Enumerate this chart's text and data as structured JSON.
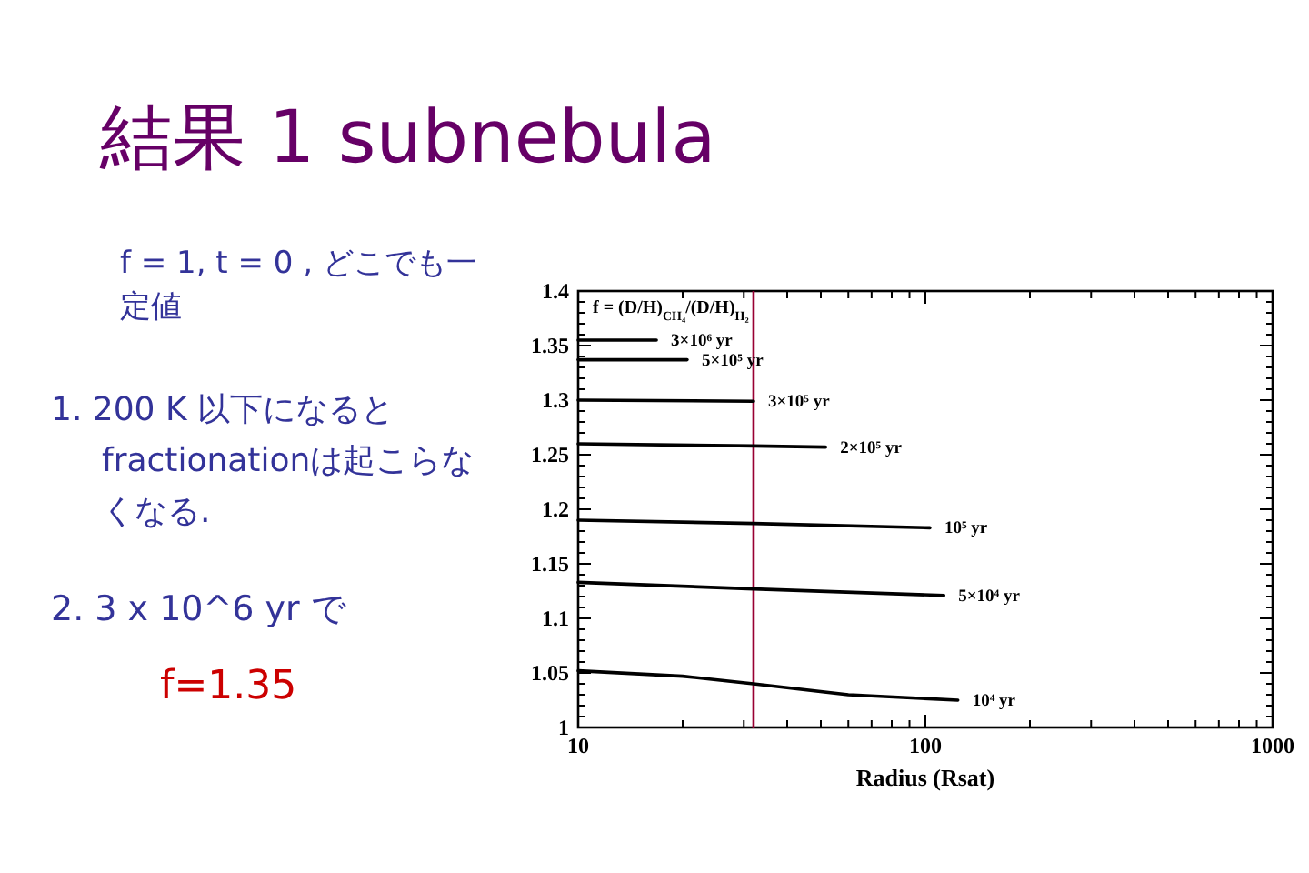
{
  "chart_data": {
    "type": "line",
    "title": "結果 1  subnebula",
    "xlabel": "Radius (Rsat)",
    "log": "x",
    "grid": false,
    "marker": "none",
    "line_style": "solid",
    "xlim": [
      10,
      1000
    ],
    "xticks": [
      10,
      100,
      1000
    ],
    "ylim": [
      1,
      1.4
    ],
    "yticks": [
      1,
      1.05,
      1.1,
      1.15,
      1.2,
      1.25,
      1.3,
      1.35,
      1.4
    ],
    "series": [
      {
        "name": "3×10⁶ yr",
        "color": "#000000",
        "x": [
          10,
          16.8
        ],
        "values": [
          1.355,
          1.355
        ]
      },
      {
        "name": "5×10⁵ yr",
        "color": "#000000",
        "x": [
          10,
          20.6
        ],
        "values": [
          1.337,
          1.337
        ]
      },
      {
        "name": "3×10⁵ yr",
        "color": "#000000",
        "x": [
          10,
          32
        ],
        "values": [
          1.3,
          1.299
        ]
      },
      {
        "name": "2×10⁵ yr",
        "color": "#000000",
        "x": [
          10,
          32,
          51.6
        ],
        "values": [
          1.26,
          1.258,
          1.257
        ]
      },
      {
        "name": "10⁵ yr",
        "color": "#000000",
        "x": [
          10,
          32,
          103
        ],
        "values": [
          1.19,
          1.187,
          1.183
        ]
      },
      {
        "name": "5×10⁴ yr",
        "color": "#000000",
        "x": [
          10,
          32,
          113
        ],
        "values": [
          1.133,
          1.127,
          1.121
        ]
      },
      {
        "name": "10⁴ yr",
        "color": "#000000",
        "x": [
          10,
          20,
          32,
          60,
          124
        ],
        "values": [
          1.052,
          1.047,
          1.04,
          1.03,
          1.025
        ]
      }
    ],
    "ref_lines": [
      {
        "axis": "x",
        "value": 32,
        "color": "#990033"
      }
    ],
    "annotations": [
      "f = (D/H)$_{CH₄}$/(D/H)$_{H₂}$",
      "f = 1, t = 0 , どこでも一定値",
      "1. 200 K 以下になるとfractionationは起こらなくなる.",
      "2. 3 x 10^6 yr で",
      "f=1.35"
    ]
  }
}
